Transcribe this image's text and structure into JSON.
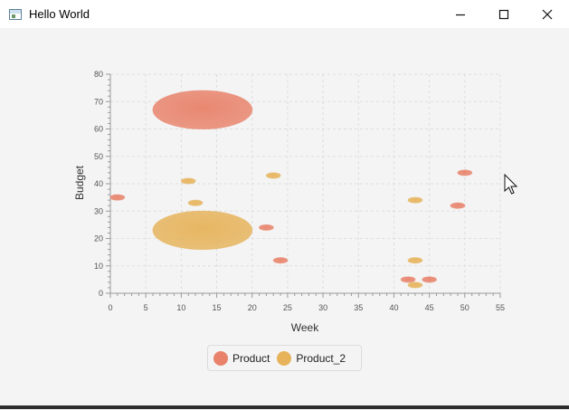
{
  "window": {
    "title": "Hello World",
    "icons": [
      "app-icon",
      "minimize-icon",
      "maximize-icon",
      "close-icon"
    ]
  },
  "colors": {
    "product": "#e8826a",
    "product_2": "#e6b35a",
    "grid": "#dedede",
    "axis": "#9a9a9a"
  },
  "chart_data": {
    "type": "bubble",
    "title": "",
    "xlabel": "Week",
    "ylabel": "Budget",
    "xlim": [
      0,
      55
    ],
    "ylim": [
      0,
      80
    ],
    "xticks": [
      0,
      5,
      10,
      15,
      20,
      25,
      30,
      35,
      40,
      45,
      50,
      55
    ],
    "yticks": [
      0,
      10,
      20,
      30,
      40,
      50,
      60,
      70,
      80
    ],
    "grid": true,
    "legend_position": "bottom",
    "series": [
      {
        "name": "Product",
        "points": [
          {
            "x": 1,
            "y": 35,
            "r": 1.0
          },
          {
            "x": 13,
            "y": 67,
            "r": 7.0
          },
          {
            "x": 22,
            "y": 24,
            "r": 1.0
          },
          {
            "x": 24,
            "y": 12,
            "r": 1.0
          },
          {
            "x": 42,
            "y": 5,
            "r": 1.0
          },
          {
            "x": 45,
            "y": 5,
            "r": 1.0
          },
          {
            "x": 49,
            "y": 32,
            "r": 1.0
          },
          {
            "x": 50,
            "y": 44,
            "r": 1.0
          }
        ]
      },
      {
        "name": "Product_2",
        "points": [
          {
            "x": 11,
            "y": 41,
            "r": 1.0
          },
          {
            "x": 12,
            "y": 33,
            "r": 1.0
          },
          {
            "x": 13,
            "y": 23,
            "r": 7.0
          },
          {
            "x": 23,
            "y": 43,
            "r": 1.0
          },
          {
            "x": 43,
            "y": 34,
            "r": 1.0
          },
          {
            "x": 43,
            "y": 12,
            "r": 1.0
          },
          {
            "x": 43,
            "y": 3,
            "r": 1.0
          }
        ]
      }
    ]
  }
}
